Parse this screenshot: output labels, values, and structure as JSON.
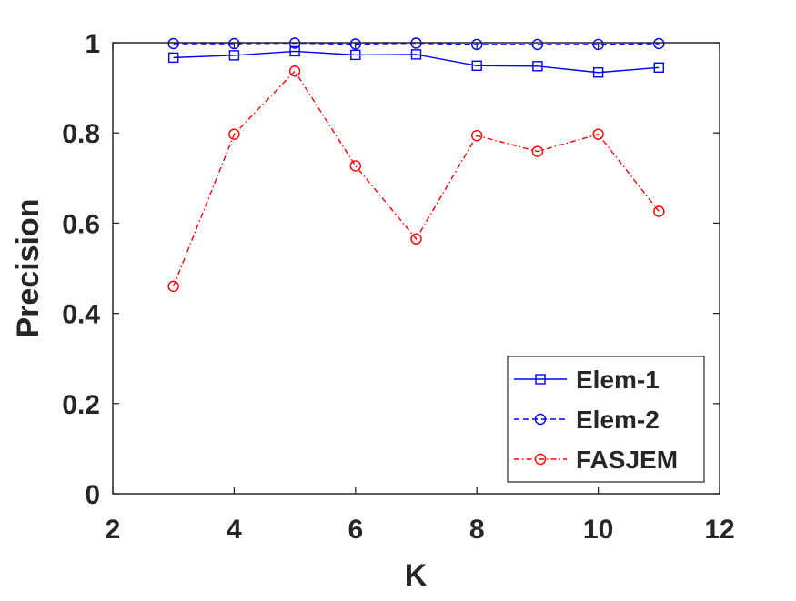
{
  "chart_data": {
    "type": "line",
    "title": "",
    "xlabel": "K",
    "ylabel": "Precision",
    "xlim": [
      2,
      12
    ],
    "ylim": [
      0,
      1
    ],
    "xticks": [
      2,
      4,
      6,
      8,
      10,
      12
    ],
    "yticks": [
      0,
      0.2,
      0.4,
      0.6,
      0.8,
      1
    ],
    "xtick_labels": [
      "2",
      "4",
      "6",
      "8",
      "10",
      "12"
    ],
    "ytick_labels": [
      "0",
      "0.2",
      "0.4",
      "0.6",
      "0.8",
      "1"
    ],
    "grid": false,
    "legend_position": "bottom-right",
    "x": [
      3,
      4,
      5,
      6,
      7,
      8,
      9,
      10,
      11
    ],
    "series": [
      {
        "name": "Elem-1",
        "values": [
          0.967,
          0.972,
          0.981,
          0.973,
          0.974,
          0.949,
          0.948,
          0.934,
          0.945
        ],
        "color": "#0000ff",
        "line_style": "solid",
        "marker": "square"
      },
      {
        "name": "Elem-2",
        "values": [
          0.998,
          0.998,
          0.999,
          0.997,
          0.999,
          0.996,
          0.996,
          0.996,
          0.998
        ],
        "color": "#0000ff",
        "line_style": "dashed",
        "marker": "circle"
      },
      {
        "name": "FASJEM",
        "values": [
          0.46,
          0.797,
          0.937,
          0.727,
          0.565,
          0.794,
          0.759,
          0.797,
          0.626
        ],
        "color": "#ff0000",
        "line_style": "dash-dot",
        "marker": "circle"
      }
    ]
  }
}
